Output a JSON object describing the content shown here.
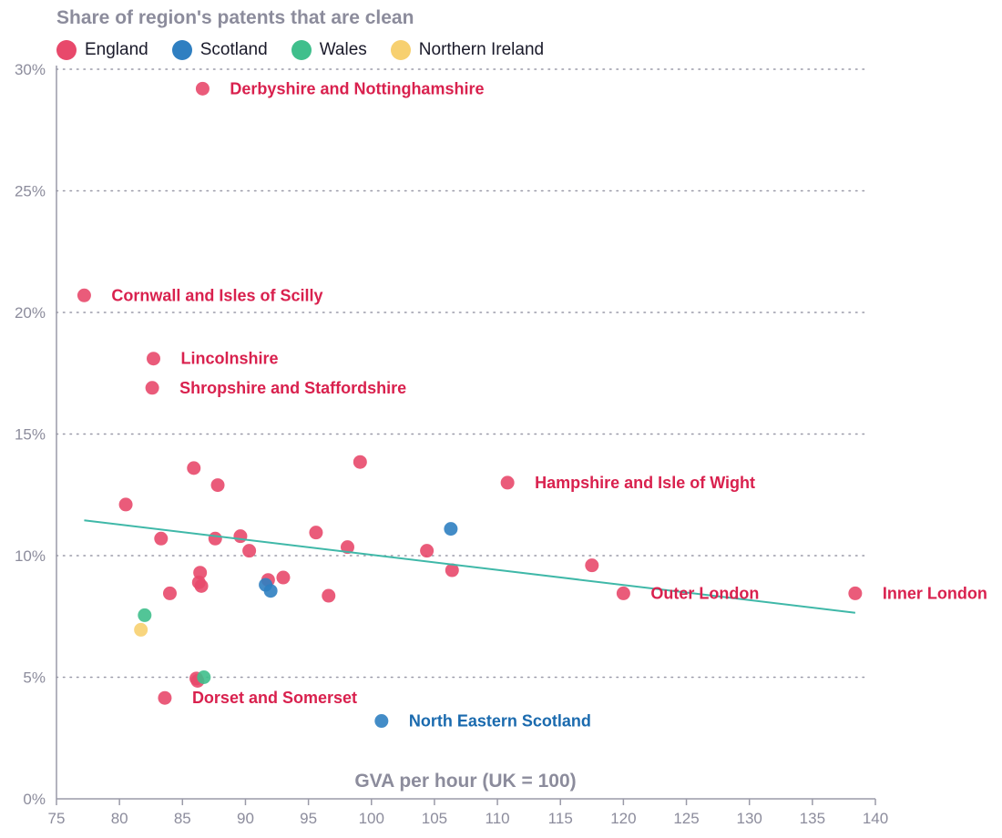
{
  "chart_data": {
    "type": "scatter",
    "title": "Share of region's patents that are clean",
    "xlabel": "GVA per hour (UK = 100)",
    "ylabel": "",
    "xlim": [
      75,
      140
    ],
    "ylim": [
      0,
      30
    ],
    "x_ticks": [
      75,
      80,
      85,
      90,
      95,
      100,
      105,
      110,
      115,
      120,
      125,
      130,
      135,
      140
    ],
    "y_ticks": [
      0,
      5,
      10,
      15,
      20,
      25,
      30
    ],
    "y_tick_suffix": "%",
    "grid": "horizontal dotted",
    "legend_position": "top-left",
    "colors": {
      "England": "#e8496b",
      "Scotland": "#2f7fc1",
      "Wales": "#3fbf8c",
      "Northern Ireland": "#f7d070",
      "trendline": "#3fb8a8",
      "England_label": "#d9214e",
      "Scotland_label": "#1a6aae"
    },
    "trendline": {
      "x": [
        77.2,
        138.4
      ],
      "y": [
        11.45,
        7.65
      ]
    },
    "series": [
      {
        "name": "England",
        "points": [
          {
            "x": 86.6,
            "y": 29.2,
            "label": "Derbyshire and Nottinghamshire"
          },
          {
            "x": 77.2,
            "y": 20.7,
            "label": "Cornwall and Isles of Scilly"
          },
          {
            "x": 82.7,
            "y": 18.1,
            "label": "Lincolnshire"
          },
          {
            "x": 82.6,
            "y": 16.9,
            "label": "Shropshire and Staffordshire"
          },
          {
            "x": 110.8,
            "y": 13.0,
            "label": "Hampshire and Isle of Wight"
          },
          {
            "x": 120.0,
            "y": 8.45,
            "label": "Outer London"
          },
          {
            "x": 138.4,
            "y": 8.45,
            "label": "Inner London"
          },
          {
            "x": 83.6,
            "y": 4.15,
            "label": "Dorset and Somerset"
          },
          {
            "x": 85.9,
            "y": 13.6
          },
          {
            "x": 87.8,
            "y": 12.9
          },
          {
            "x": 99.1,
            "y": 13.85
          },
          {
            "x": 80.5,
            "y": 12.1
          },
          {
            "x": 83.3,
            "y": 10.7
          },
          {
            "x": 87.6,
            "y": 10.7
          },
          {
            "x": 89.6,
            "y": 10.8
          },
          {
            "x": 90.3,
            "y": 10.2
          },
          {
            "x": 95.6,
            "y": 10.95
          },
          {
            "x": 98.1,
            "y": 10.35
          },
          {
            "x": 104.4,
            "y": 10.2
          },
          {
            "x": 106.4,
            "y": 9.4
          },
          {
            "x": 117.5,
            "y": 9.6
          },
          {
            "x": 86.4,
            "y": 9.3
          },
          {
            "x": 86.3,
            "y": 8.9
          },
          {
            "x": 86.5,
            "y": 8.75
          },
          {
            "x": 91.8,
            "y": 9.0
          },
          {
            "x": 93.0,
            "y": 9.1
          },
          {
            "x": 84.0,
            "y": 8.45
          },
          {
            "x": 96.6,
            "y": 8.35
          },
          {
            "x": 86.1,
            "y": 4.95
          },
          {
            "x": 86.2,
            "y": 4.85
          }
        ]
      },
      {
        "name": "Scotland",
        "points": [
          {
            "x": 106.3,
            "y": 11.1
          },
          {
            "x": 91.6,
            "y": 8.8
          },
          {
            "x": 92.0,
            "y": 8.55
          },
          {
            "x": 100.8,
            "y": 3.2,
            "label": "North Eastern Scotland"
          }
        ]
      },
      {
        "name": "Wales",
        "points": [
          {
            "x": 82.0,
            "y": 7.55
          },
          {
            "x": 86.7,
            "y": 5.0
          }
        ]
      },
      {
        "name": "Northern Ireland",
        "points": [
          {
            "x": 81.7,
            "y": 6.95
          }
        ]
      }
    ]
  }
}
